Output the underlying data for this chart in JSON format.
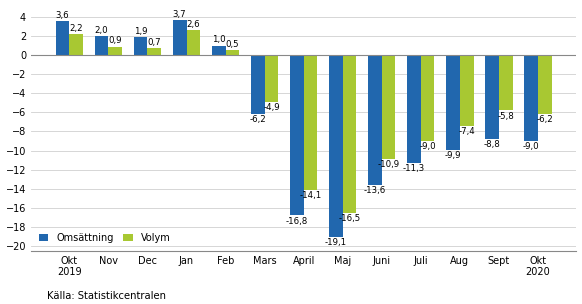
{
  "categories": [
    "Okt\n2019",
    "Nov",
    "Dec",
    "Jan",
    "Feb",
    "Mars",
    "April",
    "Maj",
    "Juni",
    "Juli",
    "Aug",
    "Sept",
    "Okt\n2020"
  ],
  "omsattning": [
    3.6,
    2.0,
    1.9,
    3.7,
    1.0,
    -6.2,
    -16.8,
    -19.1,
    -13.6,
    -11.3,
    -9.9,
    -8.8,
    -9.0
  ],
  "volym": [
    2.2,
    0.9,
    0.7,
    2.6,
    0.5,
    -4.9,
    -14.1,
    -16.5,
    -10.9,
    -9.0,
    -7.4,
    -5.8,
    -6.2
  ],
  "bar_color_omsattning": "#2167ae",
  "bar_color_volym": "#a8c832",
  "legend_omsattning": "Omsättning",
  "legend_volym": "Volym",
  "ylim": [
    -20.5,
    5.2
  ],
  "yticks": [
    -20,
    -18,
    -16,
    -14,
    -12,
    -10,
    -8,
    -6,
    -4,
    -2,
    0,
    2,
    4
  ],
  "source": "Källa: Statistikcentralen",
  "background_color": "#ffffff",
  "grid_color": "#d0d0d0",
  "label_fontsize": 6.2,
  "tick_fontsize": 7.0,
  "bar_width": 0.35
}
